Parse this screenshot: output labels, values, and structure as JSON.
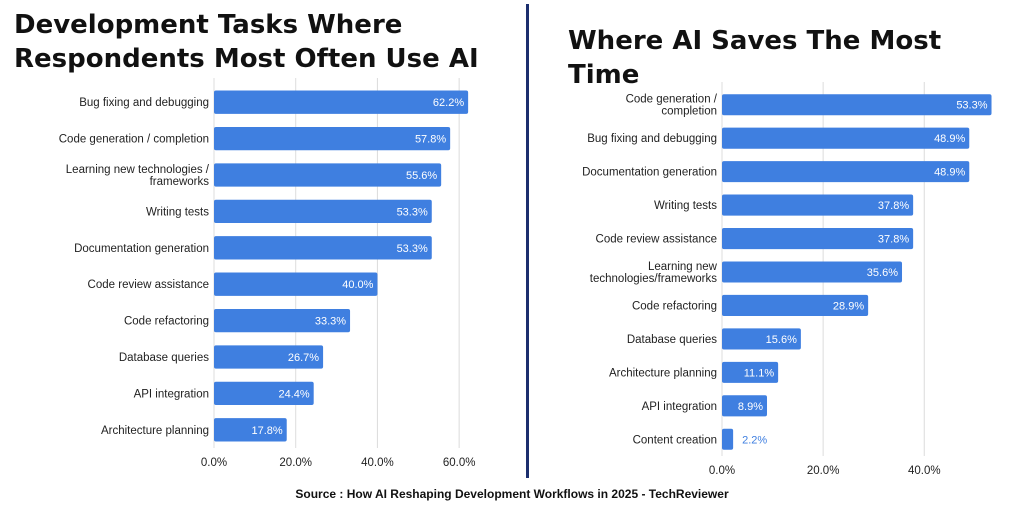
{
  "chart_data": [
    {
      "type": "bar",
      "orientation": "horizontal",
      "title": "Development Tasks Where Respondents Most Often Use AI",
      "categories": [
        "Bug fixing and debugging",
        "Code generation / completion",
        "Learning new technologies / frameworks",
        "Writing tests",
        "Documentation generation",
        "Code review assistance",
        "Code refactoring",
        "Database queries",
        "API integration",
        "Architecture planning"
      ],
      "values": [
        62.2,
        57.8,
        55.6,
        53.3,
        53.3,
        40.0,
        33.3,
        26.7,
        24.4,
        17.8
      ],
      "value_labels": [
        "62.2%",
        "57.8%",
        "55.6%",
        "53.3%",
        "53.3%",
        "40.0%",
        "33.3%",
        "26.7%",
        "24.4%",
        "17.8%"
      ],
      "xlim": [
        0,
        70
      ],
      "xticks": [
        0,
        20,
        40,
        60
      ],
      "xtick_labels": [
        "0.0%",
        "20.0%",
        "40.0%",
        "60.0%"
      ],
      "grid": true,
      "color": "#3f7fe0"
    },
    {
      "type": "bar",
      "orientation": "horizontal",
      "title": "Where AI Saves The Most Time",
      "categories": [
        "Code generation / completion",
        "Bug fixing and debugging",
        "Documentation generation",
        "Writing tests",
        "Code review assistance",
        "Learning new technologies/frameworks",
        "Code refactoring",
        "Database queries",
        "Architecture planning",
        "API integration",
        "Content creation"
      ],
      "values": [
        53.3,
        48.9,
        48.9,
        37.8,
        37.8,
        35.6,
        28.9,
        15.6,
        11.1,
        8.9,
        2.2
      ],
      "value_labels": [
        "53.3%",
        "48.9%",
        "48.9%",
        "37.8%",
        "37.8%",
        "35.6%",
        "28.9%",
        "15.6%",
        "11.1%",
        "8.9%",
        "2.2%"
      ],
      "xlim": [
        0,
        53
      ],
      "xticks": [
        0,
        20,
        40
      ],
      "xtick_labels": [
        "0.0%",
        "20.0%",
        "40.0%"
      ],
      "grid": true,
      "color": "#3f7fe0"
    }
  ],
  "left": {
    "title": "Development Tasks Where Respondents Most Often Use AI",
    "category_lines": [
      [
        "Bug fixing and debugging"
      ],
      [
        "Code generation / completion"
      ],
      [
        "Learning new technologies /",
        "frameworks"
      ],
      [
        "Writing tests"
      ],
      [
        "Documentation generation"
      ],
      [
        "Code review assistance"
      ],
      [
        "Code refactoring"
      ],
      [
        "Database queries"
      ],
      [
        "API integration"
      ],
      [
        "Architecture planning"
      ]
    ]
  },
  "right": {
    "title": "Where AI Saves The Most Time",
    "category_lines": [
      [
        "Code generation /",
        "completion"
      ],
      [
        "Bug fixing and debugging"
      ],
      [
        "Documentation generation"
      ],
      [
        "Writing tests"
      ],
      [
        "Code review assistance"
      ],
      [
        "Learning new",
        "technologies/frameworks"
      ],
      [
        "Code refactoring"
      ],
      [
        "Database queries"
      ],
      [
        "Architecture planning"
      ],
      [
        "API integration"
      ],
      [
        "Content creation"
      ]
    ]
  },
  "source": "Source : How AI Reshaping Development Workflows in 2025 - TechReviewer",
  "colors": {
    "bar": "#3f7fe0",
    "divider": "#1c2f6e"
  }
}
